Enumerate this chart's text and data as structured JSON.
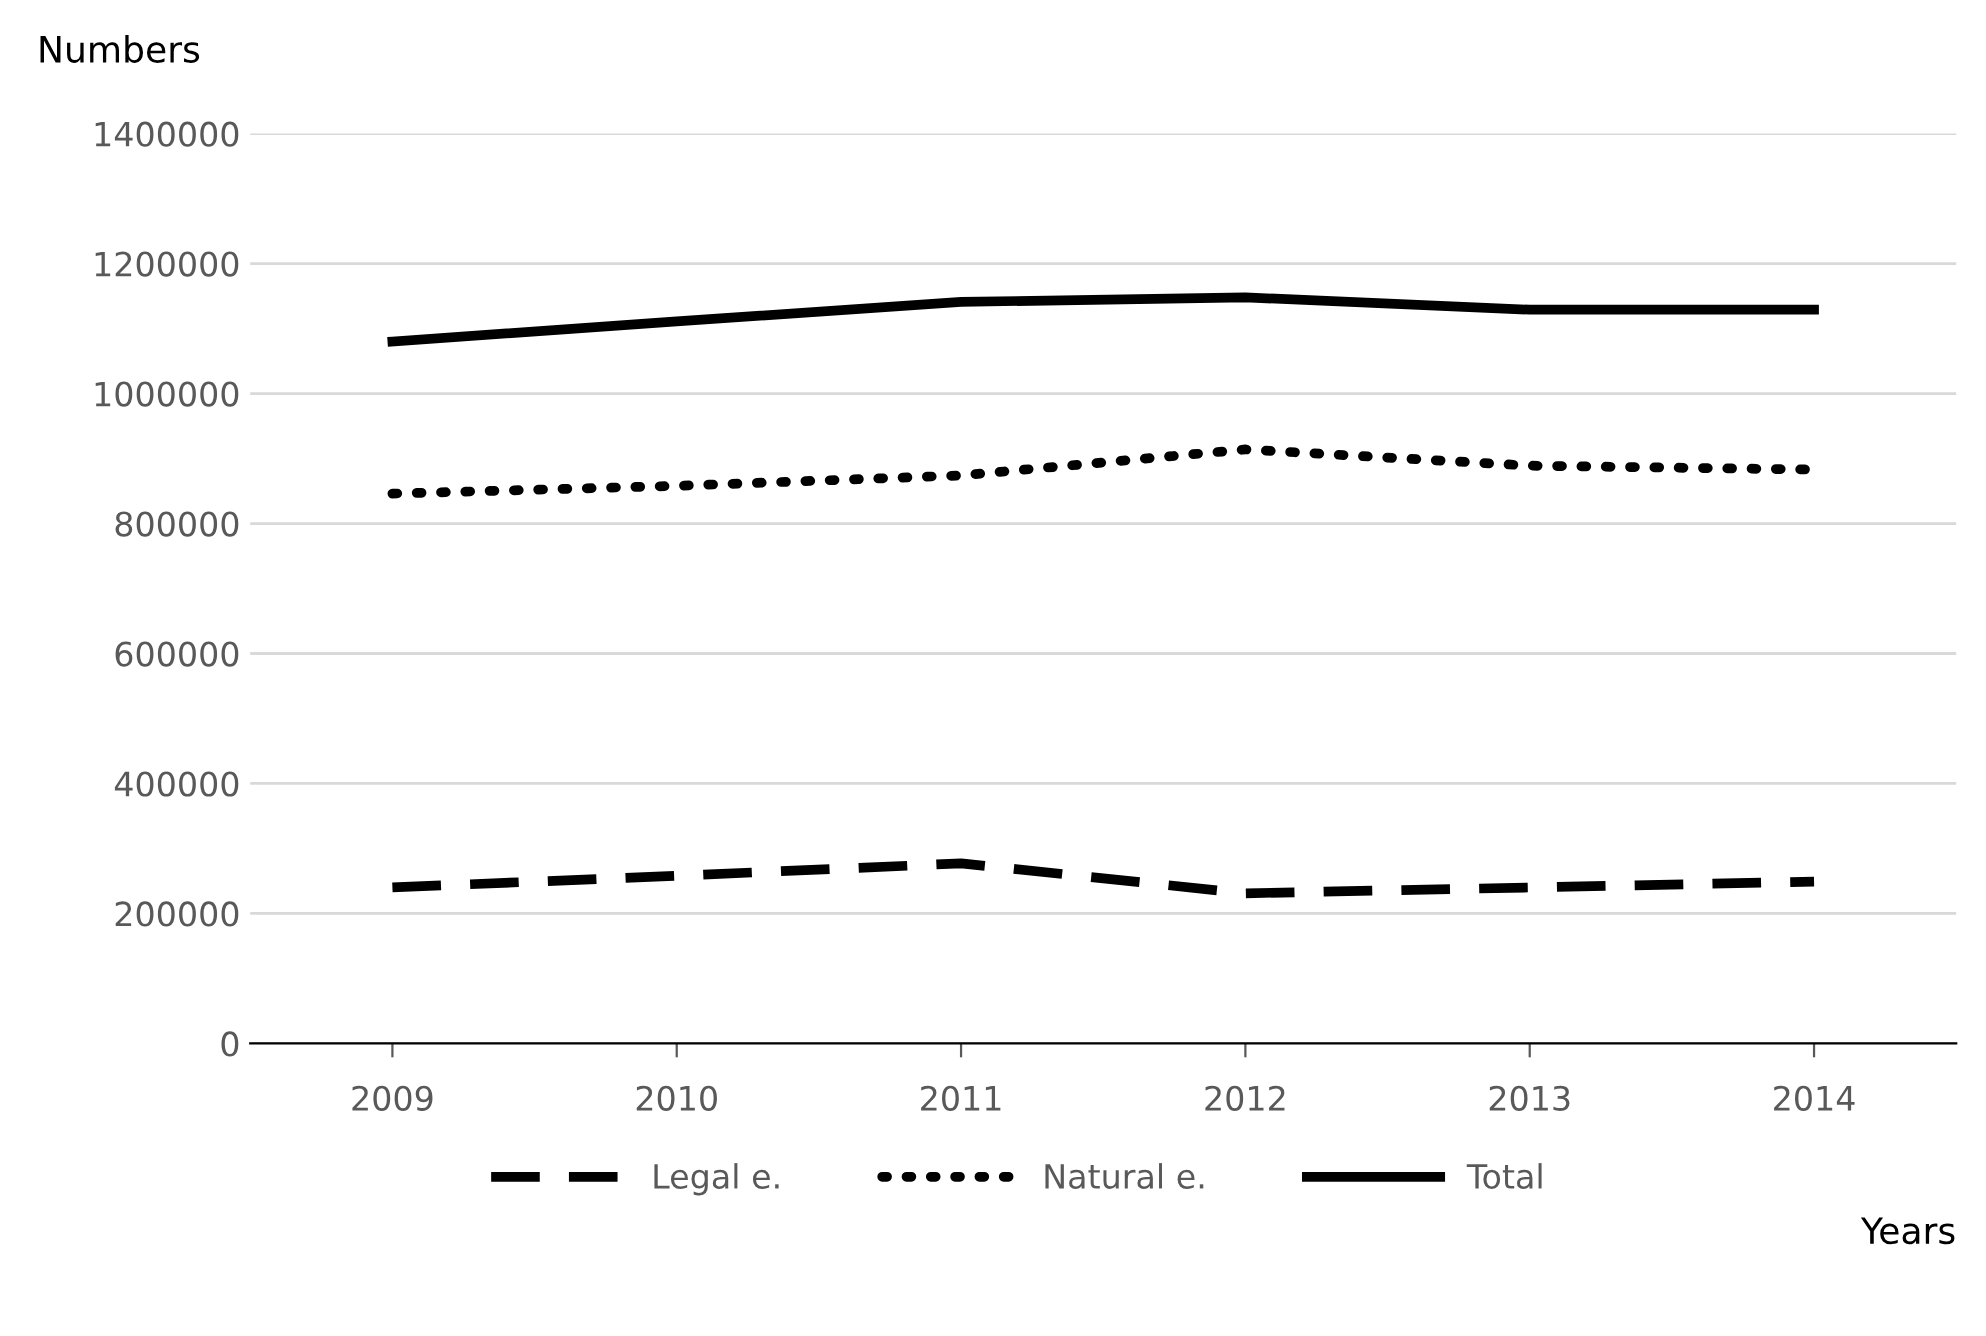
{
  "chart_data": {
    "type": "line",
    "ylabel": "Numbers",
    "xlabel": "Years",
    "categories": [
      "2009",
      "2010",
      "2011",
      "2012",
      "2013",
      "2014"
    ],
    "series": [
      {
        "name": "Legal e.",
        "color": "#000000",
        "line_style": "dashed",
        "values": [
          240000,
          258000,
          277000,
          231000,
          240000,
          249000
        ]
      },
      {
        "name": "Natural e.",
        "color": "#000000",
        "line_style": "dotted",
        "values": [
          846000,
          858000,
          874000,
          914000,
          889000,
          883000
        ]
      },
      {
        "name": "Total",
        "color": "#000000",
        "line_style": "solid",
        "values": [
          1080000,
          1111000,
          1141000,
          1148000,
          1129000,
          1129000
        ]
      }
    ],
    "ylim": [
      0,
      1400000
    ],
    "yticks": [
      0,
      200000,
      400000,
      600000,
      800000,
      1000000,
      1200000,
      1400000
    ],
    "grid": "y",
    "legend": "bottom",
    "marker": "none"
  }
}
